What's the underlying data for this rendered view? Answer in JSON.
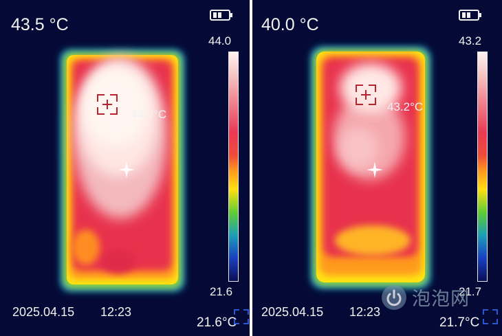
{
  "panels": [
    {
      "center_temp": "43.5 °C",
      "scale_max": "44.0",
      "scale_min": "21.6",
      "hotspot_temp": "44.0°C",
      "min_temp": "21.6°C",
      "date": "2025.04.15",
      "time": "12:23",
      "battery_icon": "battery-icon",
      "hotspot_icon": "target-reticle-icon",
      "center_icon": "crosshair-icon"
    },
    {
      "center_temp": "40.0 °C",
      "scale_max": "43.2",
      "scale_min": "21.7",
      "hotspot_temp": "43.2°C",
      "min_temp": "21.7°C",
      "date": "2025.04.15",
      "time": "12:23",
      "battery_icon": "battery-icon",
      "hotspot_icon": "target-reticle-icon",
      "center_icon": "crosshair-icon"
    }
  ],
  "watermark": {
    "text": "泡泡网",
    "icon": "power-logo-icon"
  },
  "palette": {
    "background": "#040a35",
    "hot_white": "#fff3ee",
    "hot_red": "#e8304e",
    "warm_orange": "#ff8a1e",
    "warm_yellow": "#ffe414",
    "cool_blue": "#1a3fc2"
  }
}
